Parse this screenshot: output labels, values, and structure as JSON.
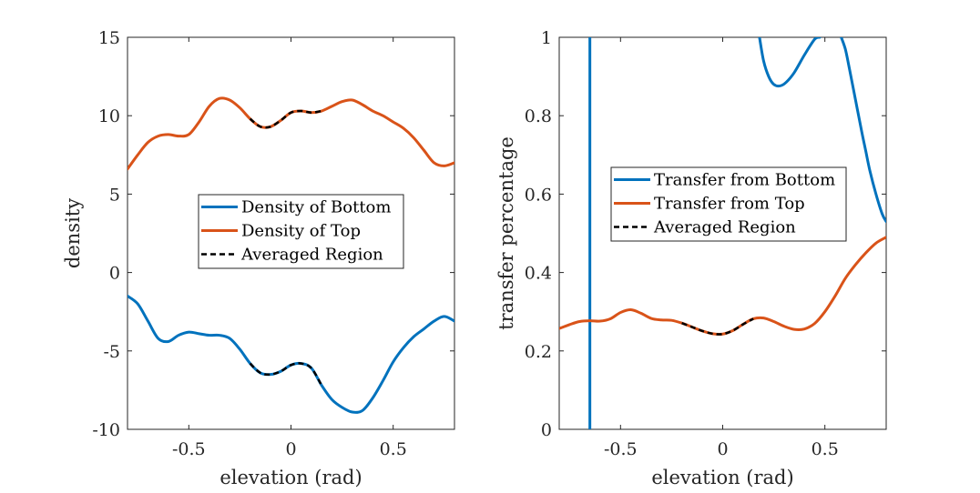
{
  "chart_data": [
    {
      "type": "line",
      "title": "",
      "xlabel": "elevation (rad)",
      "ylabel": "density",
      "xlim": [
        -0.8,
        0.8
      ],
      "ylim": [
        -10,
        15
      ],
      "xticks": [
        -0.5,
        0,
        0.5
      ],
      "xtick_labels": [
        "-0.5",
        "0",
        "0.5"
      ],
      "yticks": [
        -10,
        -5,
        0,
        5,
        10,
        15
      ],
      "ytick_labels": [
        "-10",
        "-5",
        "0",
        "5",
        "10",
        "15"
      ],
      "grid": false,
      "legend_position": "center-right",
      "series": [
        {
          "name": "Density of Bottom",
          "color": "#0072BD",
          "style": "solid",
          "x": [
            -0.8,
            -0.75,
            -0.7,
            -0.65,
            -0.6,
            -0.55,
            -0.5,
            -0.45,
            -0.4,
            -0.35,
            -0.3,
            -0.25,
            -0.2,
            -0.15,
            -0.1,
            -0.05,
            0,
            0.05,
            0.1,
            0.15,
            0.2,
            0.25,
            0.3,
            0.35,
            0.4,
            0.45,
            0.5,
            0.55,
            0.6,
            0.65,
            0.7,
            0.75,
            0.8
          ],
          "y": [
            -1.5,
            -2.0,
            -3.1,
            -4.2,
            -4.4,
            -4.0,
            -3.8,
            -3.9,
            -4.0,
            -4.0,
            -4.2,
            -4.9,
            -5.8,
            -6.4,
            -6.5,
            -6.3,
            -5.9,
            -5.8,
            -6.1,
            -7.2,
            -8.1,
            -8.6,
            -8.9,
            -8.8,
            -8.0,
            -6.9,
            -5.7,
            -4.8,
            -4.1,
            -3.6,
            -3.1,
            -2.8,
            -3.1
          ]
        },
        {
          "name": "Density of Top",
          "color": "#D95319",
          "style": "solid",
          "x": [
            -0.8,
            -0.75,
            -0.7,
            -0.65,
            -0.6,
            -0.55,
            -0.5,
            -0.45,
            -0.4,
            -0.35,
            -0.3,
            -0.25,
            -0.2,
            -0.15,
            -0.1,
            -0.05,
            0,
            0.05,
            0.1,
            0.15,
            0.2,
            0.25,
            0.3,
            0.35,
            0.4,
            0.45,
            0.5,
            0.55,
            0.6,
            0.65,
            0.7,
            0.75,
            0.8
          ],
          "y": [
            6.6,
            7.5,
            8.3,
            8.7,
            8.8,
            8.7,
            8.8,
            9.6,
            10.6,
            11.1,
            11.0,
            10.5,
            9.8,
            9.3,
            9.3,
            9.7,
            10.2,
            10.3,
            10.2,
            10.3,
            10.6,
            10.9,
            11.0,
            10.7,
            10.3,
            10.0,
            9.6,
            9.2,
            8.6,
            7.8,
            7.0,
            6.8,
            7.0
          ]
        },
        {
          "name": "Averaged Region",
          "color": "#000000",
          "style": "dashed",
          "x": [
            -0.2,
            -0.15,
            -0.1,
            -0.05,
            0,
            0.05,
            0.1,
            0.15
          ],
          "y": [
            9.8,
            9.3,
            9.3,
            9.7,
            10.2,
            10.3,
            10.2,
            10.3
          ]
        },
        {
          "name": "",
          "color": "#000000",
          "style": "dashed",
          "x": [
            -0.2,
            -0.15,
            -0.1,
            -0.05,
            0,
            0.05,
            0.1,
            0.15
          ],
          "y": [
            -5.8,
            -6.4,
            -6.5,
            -6.3,
            -5.9,
            -5.8,
            -6.1,
            -7.2
          ]
        }
      ]
    },
    {
      "type": "line",
      "title": "",
      "xlabel": "elevation (rad)",
      "ylabel": "transfer percentage",
      "xlim": [
        -0.8,
        0.8
      ],
      "ylim": [
        0,
        1
      ],
      "xticks": [
        -0.5,
        0,
        0.5
      ],
      "xtick_labels": [
        "-0.5",
        "0",
        "0.5"
      ],
      "yticks": [
        0,
        0.2,
        0.4,
        0.6,
        0.8,
        1
      ],
      "ytick_labels": [
        "0",
        "0.2",
        "0.4",
        "0.6",
        "0.8",
        "1"
      ],
      "grid": false,
      "legend_position": "center-right",
      "series": [
        {
          "name": "Transfer from Bottom",
          "color": "#0072BD",
          "style": "solid",
          "segments": [
            {
              "x": [
                -0.65,
                -0.65
              ],
              "y": [
                1.05,
                -0.05
              ]
            },
            {
              "x": [
                0.18,
                0.2,
                0.225,
                0.25,
                0.28,
                0.31,
                0.35,
                0.4,
                0.45,
                0.475
              ],
              "y": [
                1.0,
                0.94,
                0.9,
                0.88,
                0.876,
                0.885,
                0.91,
                0.955,
                0.995,
                1.0
              ]
            },
            {
              "x": [
                0.58,
                0.6,
                0.62,
                0.65,
                0.68,
                0.7,
                0.72,
                0.75,
                0.78,
                0.8
              ],
              "y": [
                1.0,
                0.97,
                0.92,
                0.84,
                0.76,
                0.71,
                0.66,
                0.6,
                0.55,
                0.53
              ]
            }
          ]
        },
        {
          "name": "Transfer from Top",
          "color": "#D95319",
          "style": "solid",
          "x": [
            -0.8,
            -0.75,
            -0.7,
            -0.65,
            -0.6,
            -0.55,
            -0.5,
            -0.45,
            -0.4,
            -0.35,
            -0.3,
            -0.25,
            -0.2,
            -0.15,
            -0.1,
            -0.05,
            0,
            0.05,
            0.1,
            0.15,
            0.2,
            0.25,
            0.3,
            0.35,
            0.4,
            0.45,
            0.5,
            0.55,
            0.6,
            0.65,
            0.7,
            0.75,
            0.8
          ],
          "y": [
            0.257,
            0.267,
            0.275,
            0.277,
            0.276,
            0.282,
            0.298,
            0.305,
            0.296,
            0.283,
            0.279,
            0.278,
            0.271,
            0.261,
            0.251,
            0.244,
            0.243,
            0.252,
            0.268,
            0.282,
            0.284,
            0.275,
            0.263,
            0.255,
            0.256,
            0.27,
            0.3,
            0.34,
            0.385,
            0.42,
            0.45,
            0.475,
            0.49
          ]
        },
        {
          "name": "Averaged Region",
          "color": "#000000",
          "style": "dashed",
          "x": [
            -0.2,
            -0.15,
            -0.1,
            -0.05,
            0,
            0.05,
            0.1,
            0.15
          ],
          "y": [
            0.271,
            0.261,
            0.251,
            0.244,
            0.243,
            0.252,
            0.268,
            0.282
          ]
        }
      ]
    }
  ],
  "legends": [
    {
      "entries": [
        "Density of Bottom",
        "Density of Top",
        "Averaged Region"
      ]
    },
    {
      "entries": [
        "Transfer from Bottom",
        "Transfer from Top",
        "Averaged Region"
      ]
    }
  ]
}
